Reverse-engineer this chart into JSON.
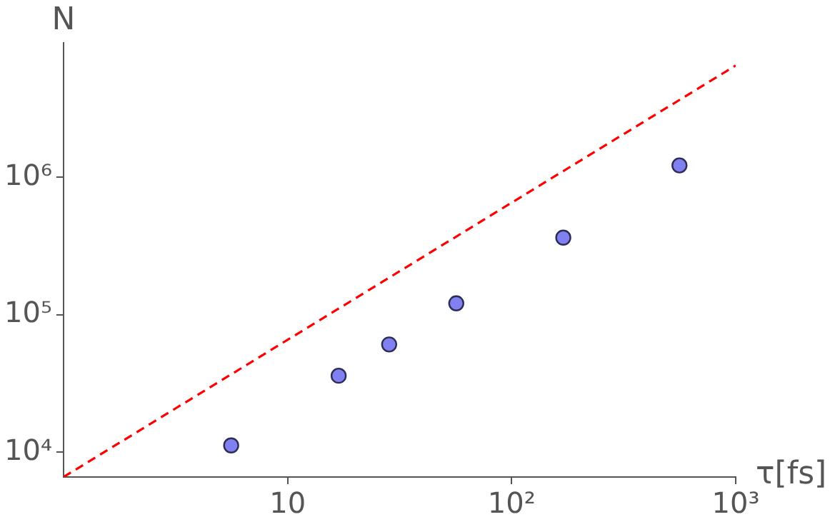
{
  "chart_data": {
    "type": "scatter",
    "xlabel": "τ[fs]",
    "ylabel": "N",
    "log": "xy",
    "xlim": [
      1,
      1000
    ],
    "ylim": [
      6600,
      9500000
    ],
    "xticks": [
      10,
      {
        "value": 100,
        "label": "10²"
      },
      {
        "value": 1000,
        "label": "10³"
      }
    ],
    "yticks": [
      {
        "value": 10000,
        "label": "10⁴"
      },
      {
        "value": 100000,
        "label": "10⁵"
      },
      {
        "value": 1000000,
        "label": "10⁶"
      }
    ],
    "series": [
      {
        "marker": "circle",
        "color": "#8080f0",
        "x": [
          5.6,
          16.9,
          28.4,
          56.6,
          170,
          561
        ],
        "values": [
          11200,
          36000,
          60800,
          121000,
          364000,
          1220000
        ]
      },
      {
        "type": "line",
        "color": "#ff0000",
        "line_style": "dashed",
        "x": [
          1,
          1000
        ],
        "values": [
          6600,
          6500000
        ]
      }
    ]
  }
}
